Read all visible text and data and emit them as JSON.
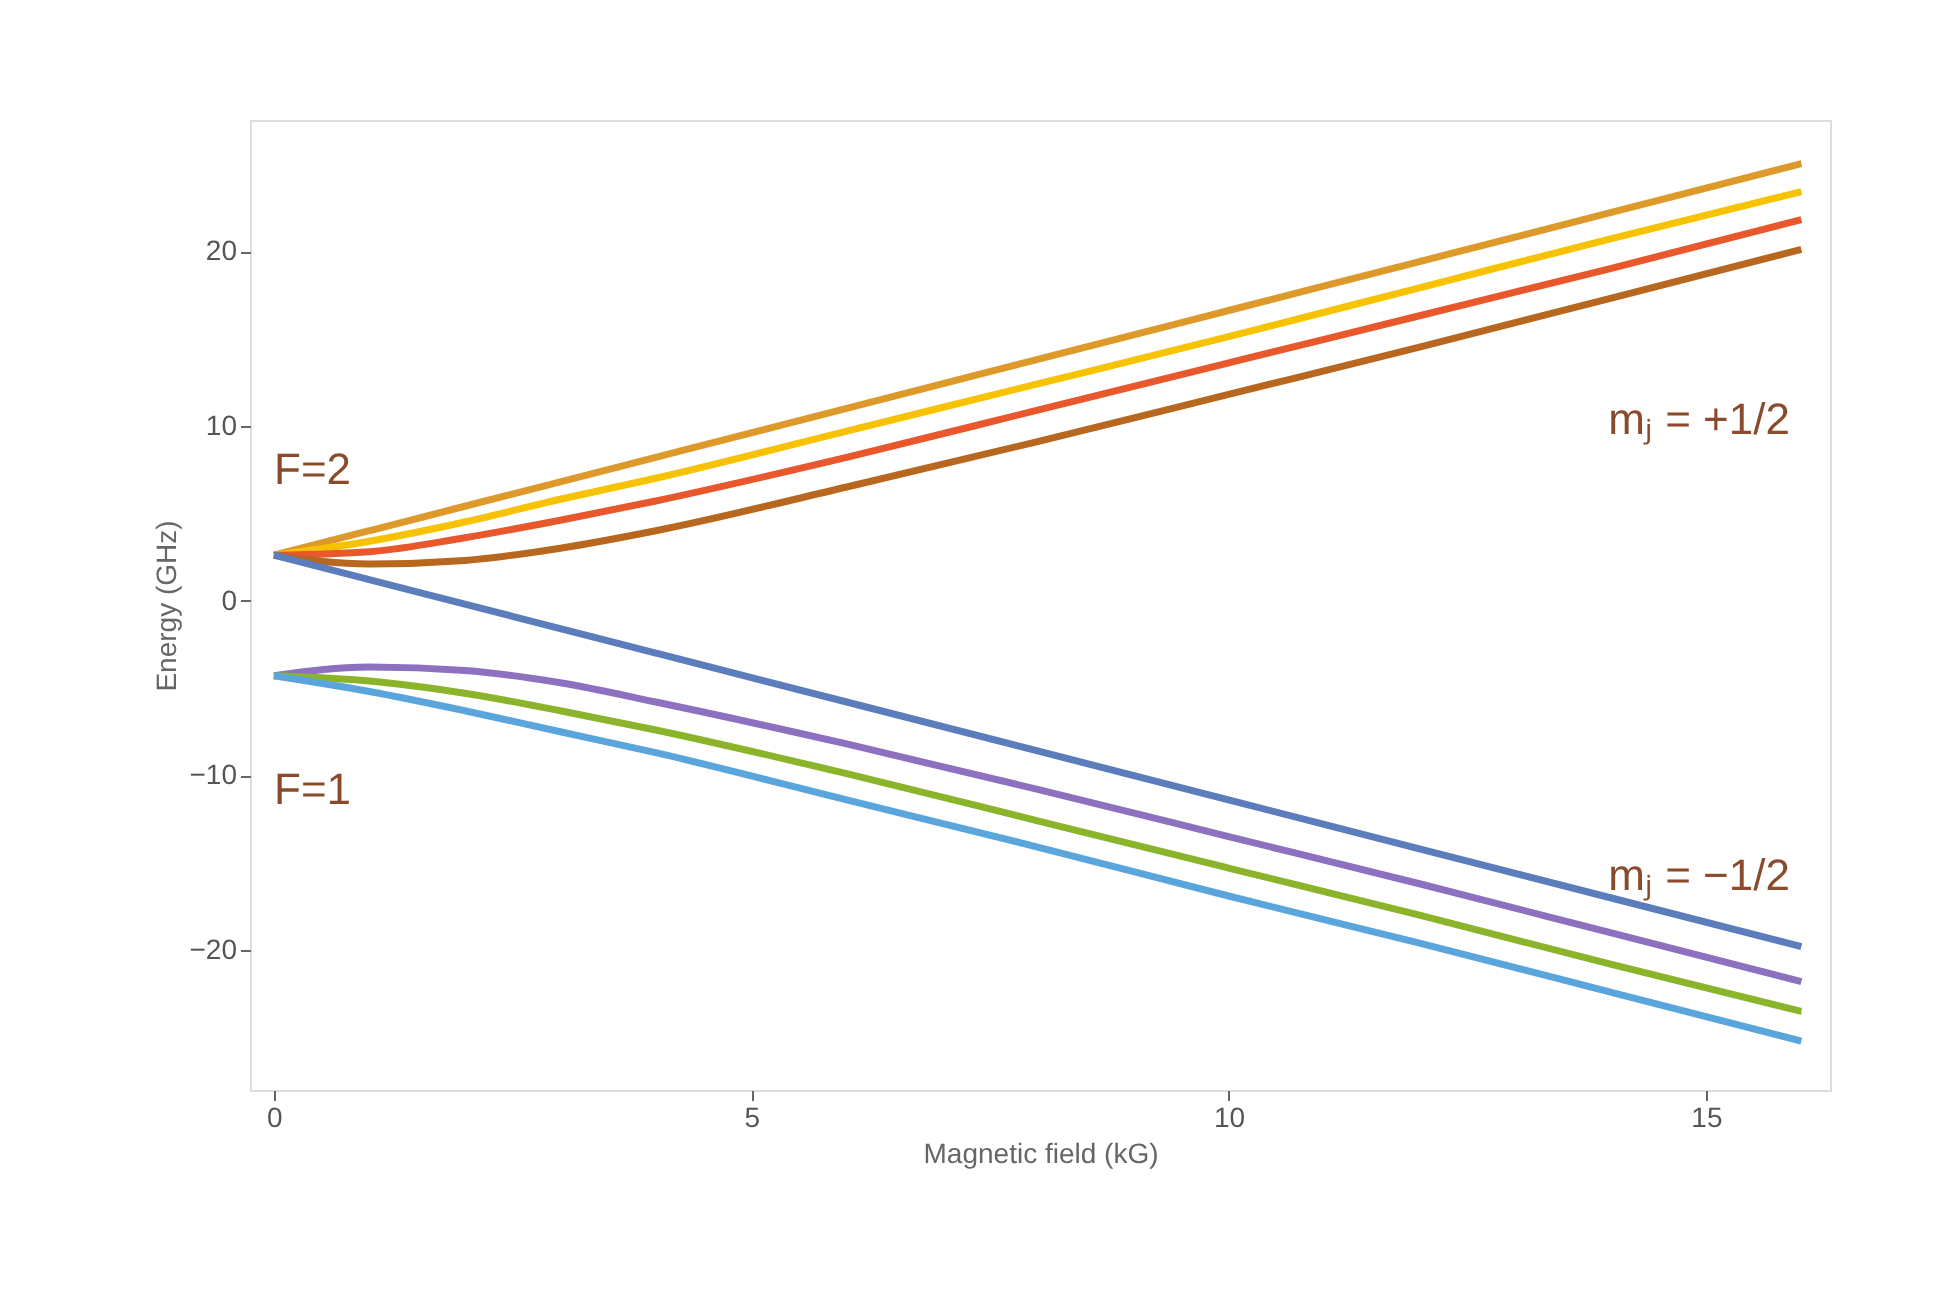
{
  "chart_data": {
    "type": "line",
    "xlabel": "Magnetic field (kG)",
    "ylabel": "Energy (GHz)",
    "x": [
      0,
      1,
      2,
      3,
      4,
      6,
      8,
      10,
      12,
      14,
      16
    ],
    "series": [
      {
        "color": "#dd9a2a",
        "values": [
          2.6,
          4,
          5.4,
          6.8,
          8.2,
          11,
          13.8,
          16.6,
          19.4,
          22.2,
          25
        ]
      },
      {
        "color": "#f7c300",
        "values": [
          2.6,
          3.4,
          4.5,
          5.8,
          7,
          9.7,
          12.4,
          15.1,
          17.9,
          20.7,
          23.4
        ]
      },
      {
        "color": "#e8582c",
        "values": [
          2.6,
          2.8,
          3.6,
          4.6,
          5.7,
          8.2,
          10.9,
          13.6,
          16.3,
          19,
          21.8
        ]
      },
      {
        "color": "#b8681e",
        "values": [
          2.6,
          2.1,
          2.3,
          3,
          4,
          6.5,
          9.1,
          11.8,
          14.5,
          17.3,
          20.1
        ]
      },
      {
        "color": "#5b7dbc",
        "values": [
          2.6,
          1.2,
          -0.2,
          -1.6,
          -3,
          -5.8,
          -8.6,
          -11.4,
          -14.2,
          -17,
          -19.8
        ]
      },
      {
        "color": "#8d70c0",
        "values": [
          -4.3,
          -3.8,
          -4,
          -4.7,
          -5.8,
          -8.2,
          -10.8,
          -13.5,
          -16.2,
          -19,
          -21.8
        ]
      },
      {
        "color": "#8cb42a",
        "values": [
          -4.3,
          -4.6,
          -5.3,
          -6.3,
          -7.4,
          -9.9,
          -12.6,
          -15.3,
          -18,
          -20.8,
          -23.5
        ]
      },
      {
        "color": "#5aa5db",
        "values": [
          -4.3,
          -5.2,
          -6.3,
          -7.5,
          -8.7,
          -11.4,
          -14.1,
          -16.9,
          -19.6,
          -22.4,
          -25.2
        ]
      }
    ],
    "xlim": [
      -0.25,
      16.3
    ],
    "ylim": [
      -28,
      27.5
    ],
    "xticks": [
      0,
      5,
      10,
      15
    ],
    "yticks": [
      -20,
      -10,
      0,
      10,
      20
    ],
    "grid": false,
    "legend": false,
    "marker": "none",
    "line_style": "solid",
    "annotations": [
      "F=2",
      "F=1",
      "mⱼ = +1/2",
      "mⱼ = −1/2"
    ]
  }
}
